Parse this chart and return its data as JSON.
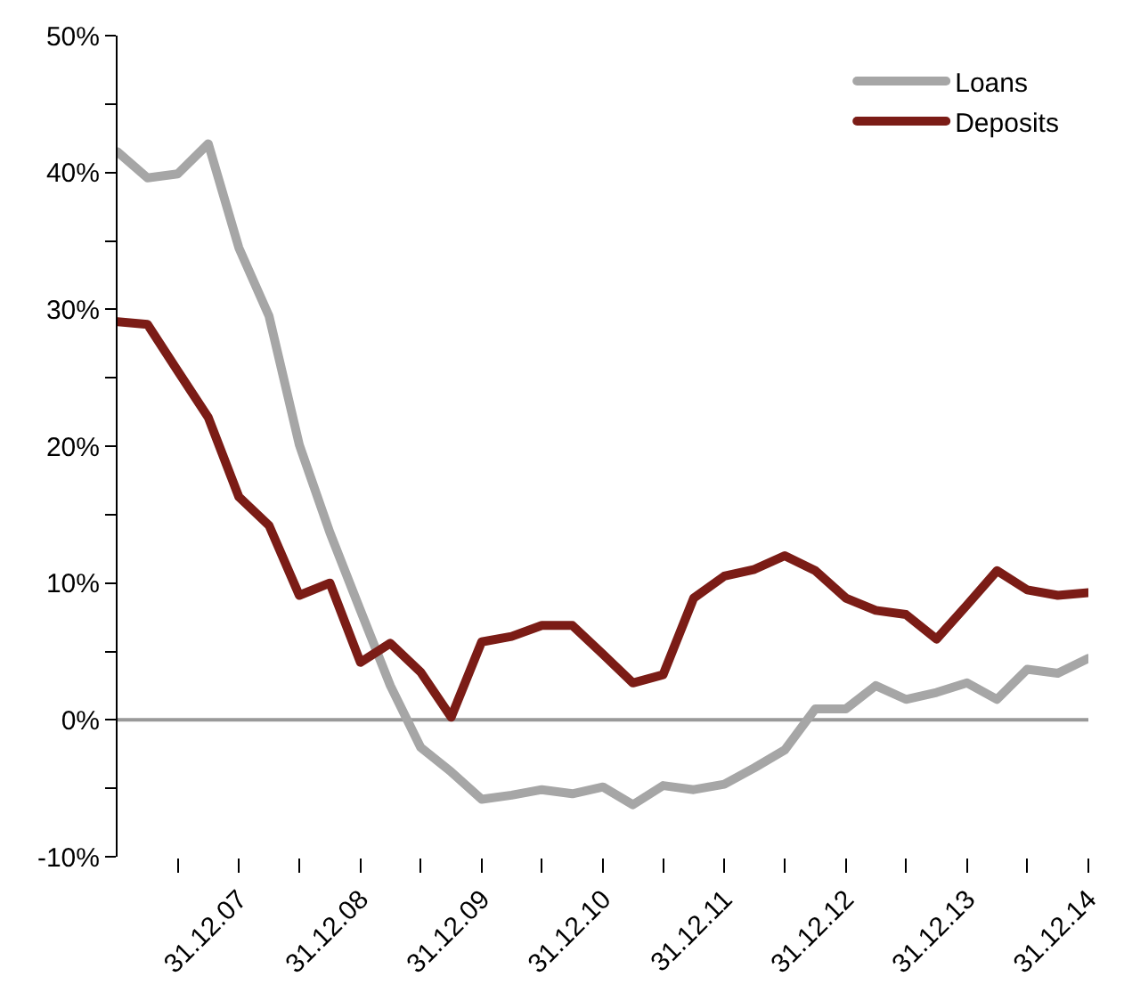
{
  "chart_data": {
    "type": "line",
    "x": [
      "2006-12-31",
      "2007-03-31",
      "2007-06-30",
      "2007-09-30",
      "2007-12-31",
      "2008-03-31",
      "2008-06-30",
      "2008-09-30",
      "2008-12-31",
      "2009-03-31",
      "2009-06-30",
      "2009-09-30",
      "2009-12-31",
      "2010-03-31",
      "2010-06-30",
      "2010-09-30",
      "2010-12-31",
      "2011-03-31",
      "2011-06-30",
      "2011-09-30",
      "2011-12-31",
      "2012-03-31",
      "2012-06-30",
      "2012-09-30",
      "2012-12-31",
      "2013-03-31",
      "2013-06-30",
      "2013-09-30",
      "2013-12-31",
      "2014-03-31",
      "2014-06-30",
      "2014-09-30",
      "2014-12-31"
    ],
    "series": [
      {
        "name": "Loans",
        "color": "#a6a6a6",
        "values": [
          41.5,
          39.6,
          39.9,
          42.1,
          34.5,
          29.5,
          20.1,
          13.7,
          8,
          2.5,
          -2,
          -3.8,
          -5.8,
          -5.5,
          -5.1,
          -5.4,
          -4.9,
          -6.2,
          -4.8,
          -5.1,
          -4.7,
          -3.5,
          -2.2,
          0.8,
          0.8,
          2.5,
          1.5,
          2,
          2.7,
          1.5,
          3.7,
          3.4,
          4.5
        ]
      },
      {
        "name": "Deposits",
        "color": "#7b1c16",
        "values": [
          29.1,
          28.9,
          25.5,
          22.1,
          16.3,
          14.2,
          9.1,
          10,
          4.2,
          5.6,
          3.5,
          0.2,
          5.7,
          6.1,
          6.9,
          6.9,
          4.8,
          2.7,
          3.3,
          8.9,
          10.5,
          11,
          12,
          10.9,
          8.9,
          8,
          7.7,
          5.9,
          8.4,
          10.9,
          9.5,
          9.1,
          9.3
        ]
      }
    ],
    "xlim": [
      "2006-12-31",
      "2014-12-31"
    ],
    "xticks": [
      {
        "value": "2007-06-30",
        "label": null
      },
      {
        "value": "2007-12-31",
        "label": "31.12.07"
      },
      {
        "value": "2008-06-30",
        "label": null
      },
      {
        "value": "2008-12-31",
        "label": "31.12.08"
      },
      {
        "value": "2009-06-30",
        "label": null
      },
      {
        "value": "2009-12-31",
        "label": "31.12.09"
      },
      {
        "value": "2010-06-30",
        "label": null
      },
      {
        "value": "2010-12-31",
        "label": "31.12.10"
      },
      {
        "value": "2011-06-30",
        "label": null
      },
      {
        "value": "2011-12-31",
        "label": "31.12.11"
      },
      {
        "value": "2012-06-30",
        "label": null
      },
      {
        "value": "2012-12-31",
        "label": "31.12.12"
      },
      {
        "value": "2013-06-30",
        "label": null
      },
      {
        "value": "2013-12-31",
        "label": "31.12.13"
      },
      {
        "value": "2014-06-30",
        "label": null
      },
      {
        "value": "2014-12-31",
        "label": "31.12.14"
      }
    ],
    "ylim": [
      -10,
      50
    ],
    "yticks": [
      {
        "value": -10,
        "label": "-10%"
      },
      {
        "value": -5,
        "label": null
      },
      {
        "value": 0,
        "label": "0%"
      },
      {
        "value": 5,
        "label": null
      },
      {
        "value": 10,
        "label": "10%"
      },
      {
        "value": 15,
        "label": null
      },
      {
        "value": 20,
        "label": "20%"
      },
      {
        "value": 25,
        "label": null
      },
      {
        "value": 30,
        "label": "30%"
      },
      {
        "value": 35,
        "label": null
      },
      {
        "value": 40,
        "label": "40%"
      },
      {
        "value": 45,
        "label": null
      },
      {
        "value": 50,
        "label": "50%"
      }
    ],
    "ref_lines": [
      {
        "axis": "y",
        "value": 0,
        "label": null,
        "color": "#999999"
      }
    ],
    "grid": false,
    "legend": "top right",
    "marker": "none",
    "line_style": "solid"
  }
}
